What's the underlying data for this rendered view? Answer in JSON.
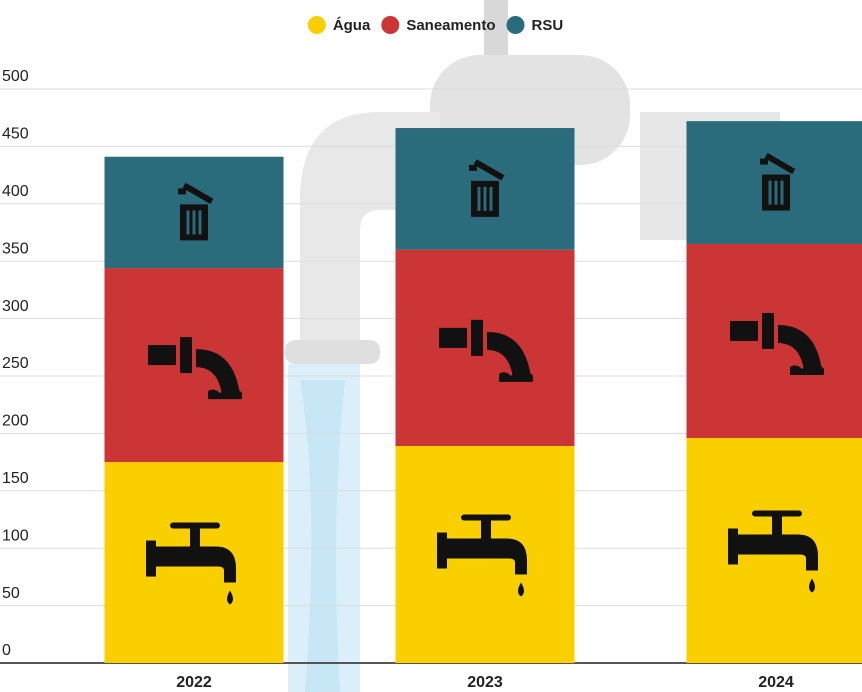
{
  "chart_data": {
    "type": "stacked_bar",
    "categories": [
      "2022",
      "2023",
      "2024"
    ],
    "series": [
      {
        "name": "Água",
        "color": "#f9cf00",
        "values": [
          175,
          189,
          196
        ]
      },
      {
        "name": "Saneamento",
        "color": "#cc3535",
        "values": [
          169,
          171,
          169
        ]
      },
      {
        "name": "RSU",
        "color": "#2a6b7c",
        "values": [
          97,
          106,
          107
        ]
      }
    ],
    "ylim": [
      0,
      500
    ],
    "yticks": [
      0,
      50,
      100,
      150,
      200,
      250,
      300,
      350,
      400,
      450,
      500
    ],
    "grid": true,
    "legend": "top"
  }
}
